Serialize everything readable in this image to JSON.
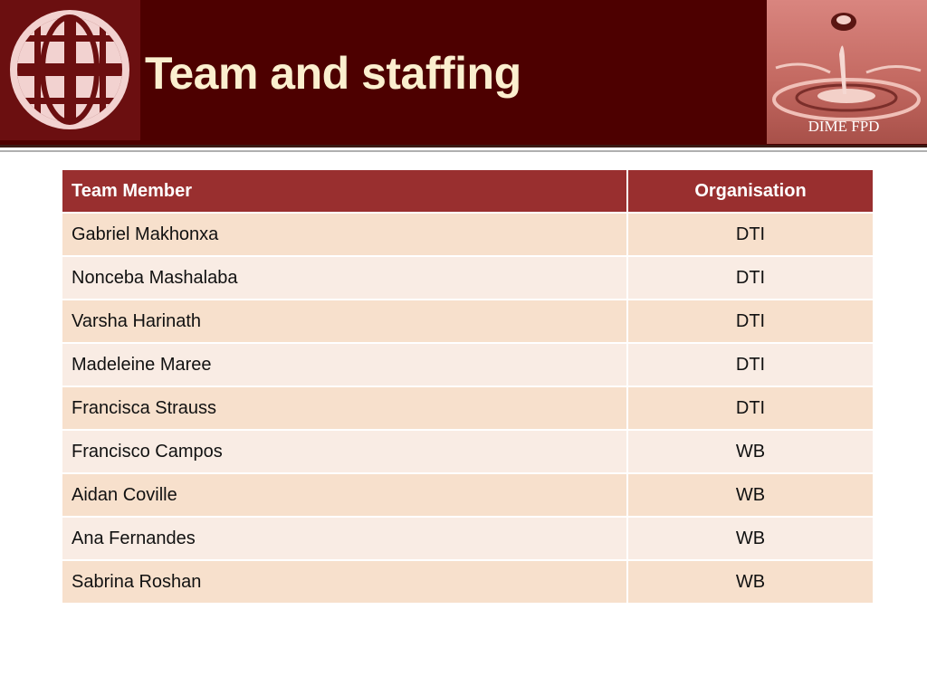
{
  "slide": {
    "title": "Team and staffing",
    "photo_caption": "DIME FPD",
    "logo_icon": "globe-icon",
    "colors": {
      "header_background": "#4d0000",
      "title_text": "#fbefcf",
      "table_header": "#992f2f",
      "row_odd": "#f7e0cc",
      "row_even": "#f9ece4"
    }
  },
  "table": {
    "headers": [
      "Team Member",
      "Organisation"
    ],
    "rows": [
      {
        "member": "Gabriel Makhonxa",
        "organisation": "DTI"
      },
      {
        "member": "Nonceba Mashalaba",
        "organisation": "DTI"
      },
      {
        "member": "Varsha Harinath",
        "organisation": "DTI"
      },
      {
        "member": "Madeleine Maree",
        "organisation": "DTI"
      },
      {
        "member": "Francisca Strauss",
        "organisation": "DTI"
      },
      {
        "member": "Francisco Campos",
        "organisation": "WB"
      },
      {
        "member": "Aidan Coville",
        "organisation": "WB"
      },
      {
        "member": "Ana Fernandes",
        "organisation": "WB"
      },
      {
        "member": "Sabrina Roshan",
        "organisation": "WB"
      }
    ]
  }
}
